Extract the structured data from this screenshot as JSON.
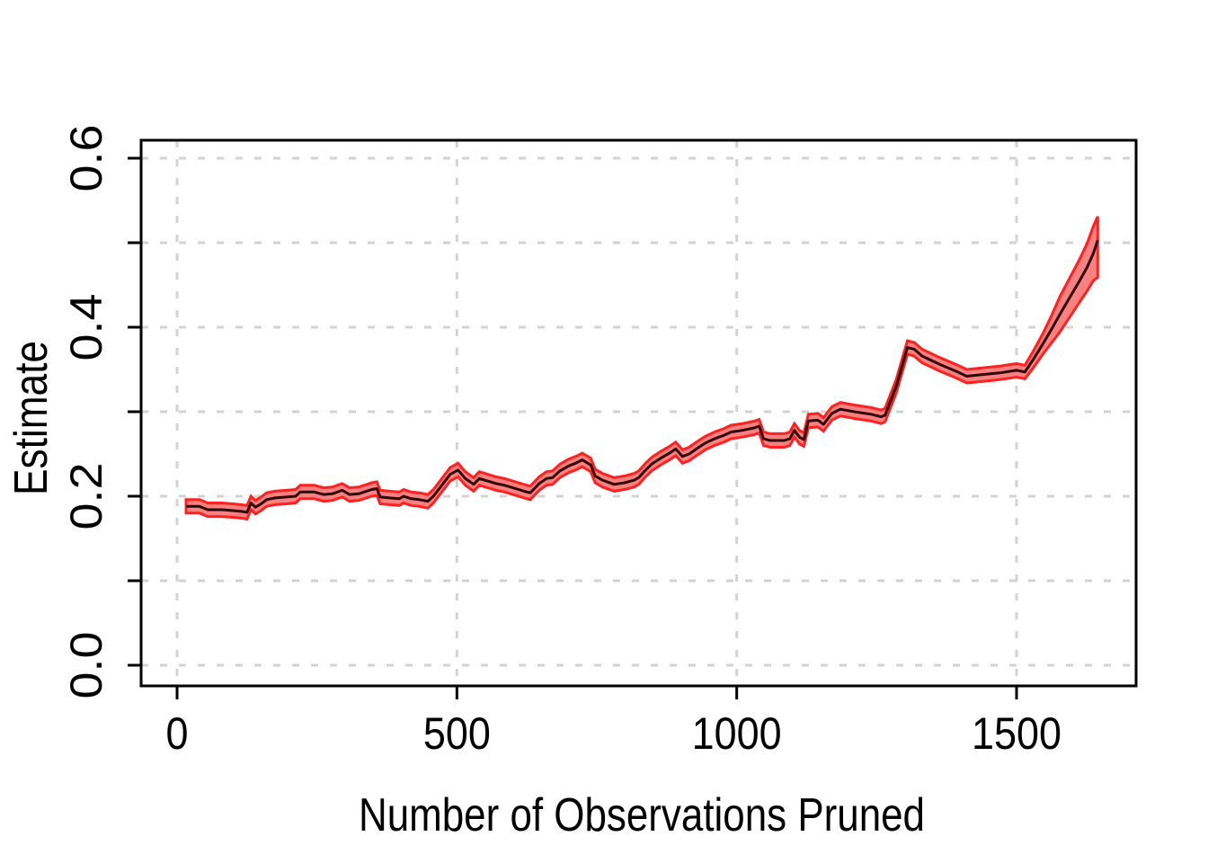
{
  "chart_data": {
    "type": "line",
    "title": "",
    "xlabel": "Number of Observations Pruned",
    "ylabel": "Estimate",
    "xlim": [
      0,
      1650
    ],
    "ylim": [
      0,
      0.6
    ],
    "x_ticks": {
      "values": [
        0,
        500,
        1000,
        1500
      ],
      "labels": [
        "0",
        "500",
        "1000",
        "1500"
      ]
    },
    "y_ticks": {
      "values": [
        0,
        0.1,
        0.2,
        0.3,
        0.4,
        0.5,
        0.6
      ],
      "labels": [
        "0.0",
        "",
        "0.2",
        "",
        "0.4",
        "",
        "0.6"
      ]
    },
    "grid": {
      "style": "dashed",
      "color": "#D3D3D3",
      "horizontal_at": [
        0,
        0.1,
        0.2,
        0.3,
        0.4,
        0.5,
        0.6
      ],
      "vertical_at": [
        0,
        500,
        1000,
        1500
      ]
    },
    "legend": null,
    "colors": {
      "line": "#2F0505",
      "band_fill": "#F98181",
      "band_border": "#FF2020",
      "grid": "#D3D3D3",
      "axis": "#000000",
      "text": "#000000",
      "background": "#FFFFFF"
    },
    "series": [
      {
        "name": "estimate-with-confidence-band",
        "x": [
          16,
          40,
          55,
          80,
          100,
          115,
          125,
          132,
          140,
          150,
          160,
          175,
          195,
          212,
          220,
          245,
          262,
          278,
          295,
          308,
          325,
          348,
          357,
          363,
          380,
          397,
          405,
          418,
          433,
          448,
          458,
          472,
          488,
          502,
          515,
          530,
          540,
          555,
          570,
          585,
          605,
          625,
          631,
          647,
          660,
          671,
          684,
          700,
          712,
          724,
          739,
          747,
          760,
          781,
          800,
          817,
          825,
          837,
          848,
          864,
          880,
          891,
          903,
          915,
          928,
          944,
          960,
          977,
          990,
          1010,
          1032,
          1040,
          1048,
          1060,
          1085,
          1095,
          1103,
          1112,
          1120,
          1128,
          1145,
          1155,
          1170,
          1185,
          1210,
          1240,
          1258,
          1265,
          1285,
          1305,
          1317,
          1331,
          1363,
          1395,
          1411,
          1440,
          1470,
          1500,
          1515,
          1530,
          1546,
          1562,
          1578,
          1594,
          1610,
          1626,
          1637,
          1645
        ],
        "y": [
          0.188,
          0.188,
          0.184,
          0.184,
          0.183,
          0.182,
          0.181,
          0.192,
          0.187,
          0.191,
          0.196,
          0.198,
          0.199,
          0.2,
          0.205,
          0.205,
          0.202,
          0.203,
          0.207,
          0.202,
          0.203,
          0.208,
          0.209,
          0.199,
          0.198,
          0.197,
          0.2,
          0.197,
          0.196,
          0.194,
          0.2,
          0.212,
          0.226,
          0.231,
          0.221,
          0.214,
          0.221,
          0.218,
          0.215,
          0.213,
          0.209,
          0.205,
          0.204,
          0.215,
          0.221,
          0.222,
          0.23,
          0.236,
          0.239,
          0.243,
          0.237,
          0.224,
          0.219,
          0.214,
          0.216,
          0.219,
          0.222,
          0.231,
          0.238,
          0.245,
          0.251,
          0.256,
          0.247,
          0.25,
          0.256,
          0.263,
          0.268,
          0.272,
          0.276,
          0.278,
          0.281,
          0.283,
          0.268,
          0.266,
          0.266,
          0.268,
          0.278,
          0.27,
          0.267,
          0.289,
          0.29,
          0.285,
          0.298,
          0.303,
          0.3,
          0.297,
          0.294,
          0.296,
          0.33,
          0.376,
          0.374,
          0.366,
          0.356,
          0.347,
          0.342,
          0.344,
          0.346,
          0.349,
          0.347,
          0.362,
          0.379,
          0.397,
          0.416,
          0.434,
          0.452,
          0.471,
          0.487,
          0.503
        ],
        "band_halfwidth_default": 0.008,
        "band_halfwidth_tail_start_index": 99,
        "band_halfwidth_tail": [
          0.01,
          0.012,
          0.016,
          0.021,
          0.023,
          0.025,
          0.028,
          0.032
        ],
        "final_point_ci": {
          "lower": 0.459,
          "upper": 0.531
        }
      }
    ]
  }
}
